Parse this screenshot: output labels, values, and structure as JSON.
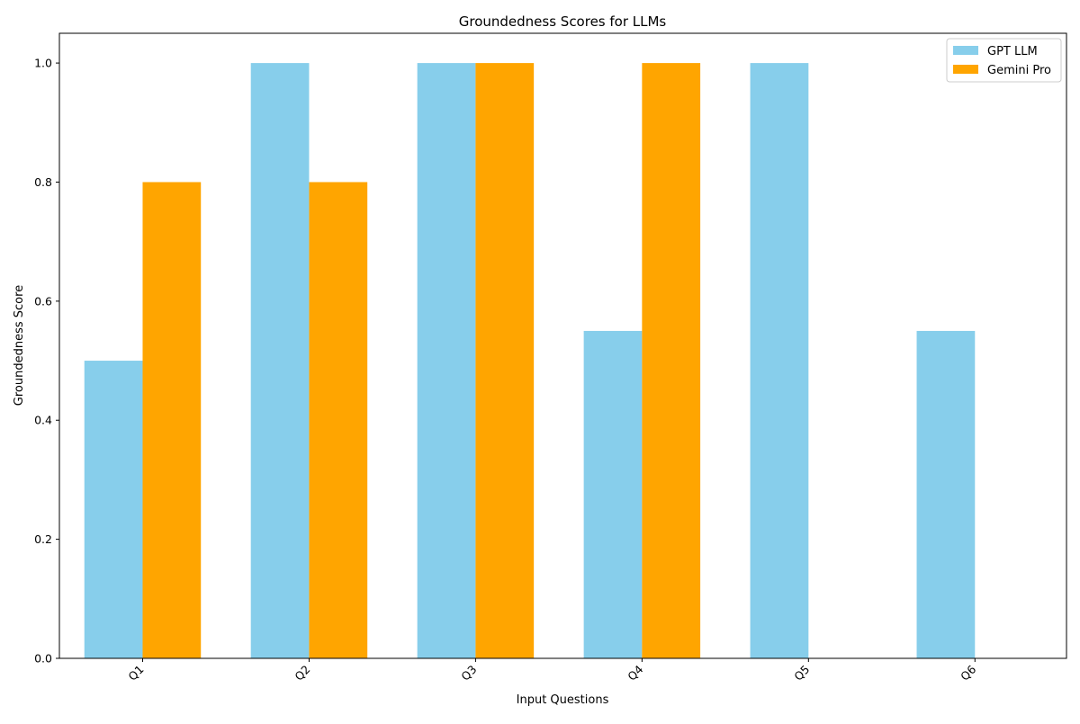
{
  "chart_data": {
    "type": "bar",
    "title": "Groundedness Scores for LLMs",
    "xlabel": "Input Questions",
    "ylabel": "Groundedness Score",
    "categories": [
      "Q1",
      "Q2",
      "Q3",
      "Q4",
      "Q5",
      "Q6"
    ],
    "series": [
      {
        "name": "GPT LLM",
        "color": "#87ceeb",
        "values": [
          0.5,
          1.0,
          1.0,
          0.55,
          1.0,
          0.55
        ]
      },
      {
        "name": "Gemini Pro",
        "color": "#ffa500",
        "values": [
          0.8,
          0.8,
          1.0,
          1.0,
          0.0,
          0.0
        ]
      }
    ],
    "ylim": [
      0,
      1.05
    ],
    "yticks": [
      0.0,
      0.2,
      0.4,
      0.6,
      0.8,
      1.0
    ],
    "ytick_labels": [
      "0.0",
      "0.2",
      "0.4",
      "0.6",
      "0.8",
      "1.0"
    ],
    "grid": false,
    "legend_position": "top-right"
  }
}
